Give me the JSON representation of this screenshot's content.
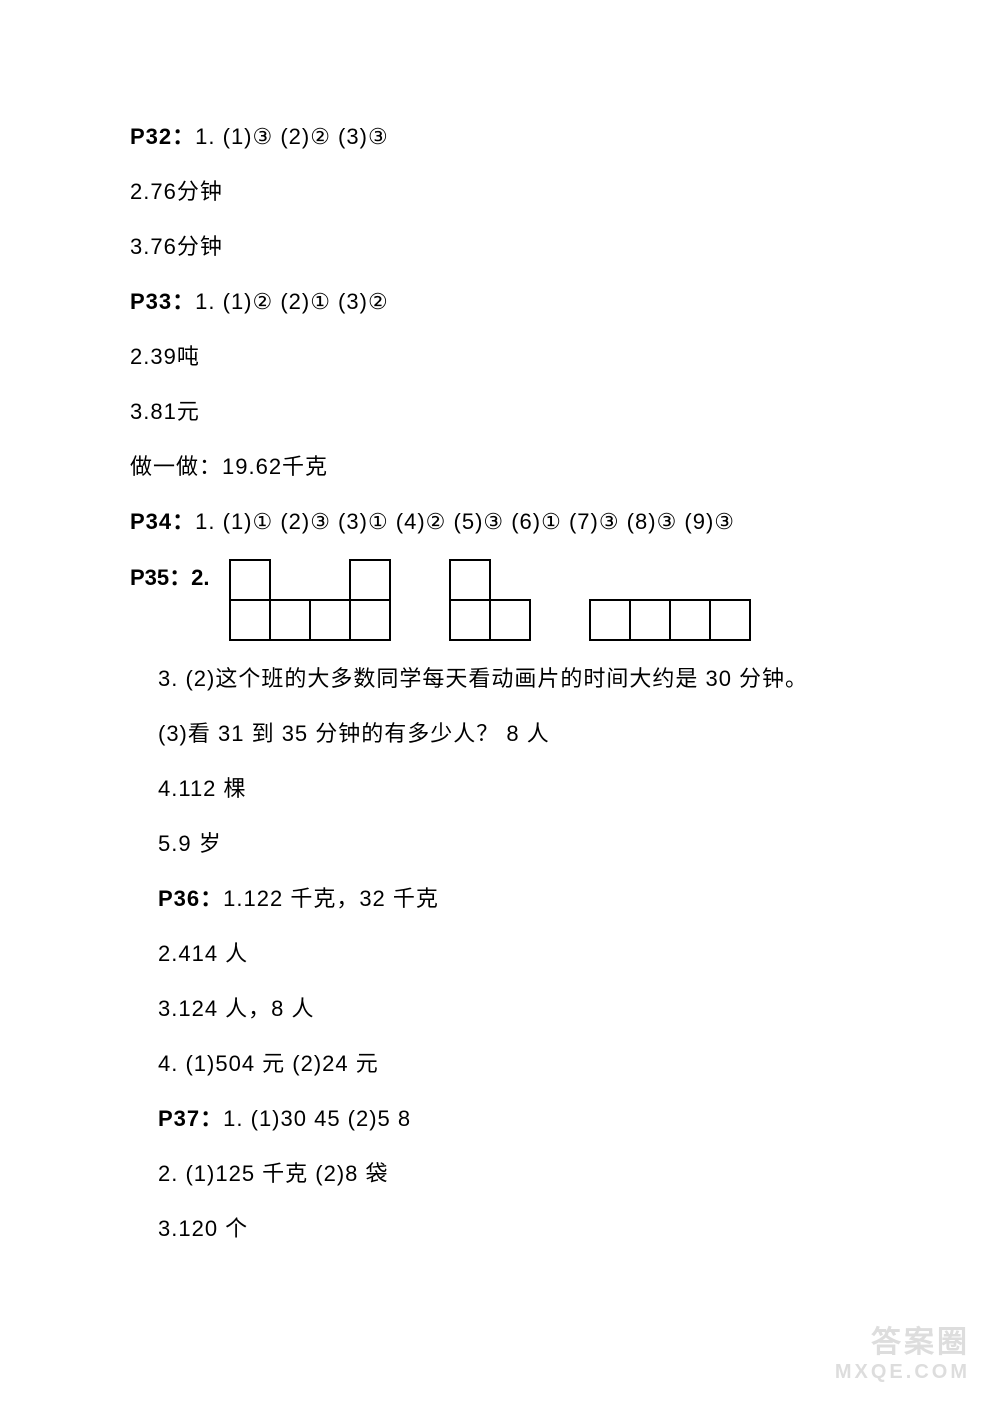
{
  "lines": {
    "l1": {
      "label": "P32：",
      "rest": "1.  (1)③ (2)② (3)③"
    },
    "l2": "2.76分钟",
    "l3": "3.76分钟",
    "l4": {
      "label": "P33：",
      "rest": "1.  (1)②    (2)①    (3)②"
    },
    "l5": "2.39吨",
    "l6": "3.81元",
    "l7": "做一做：19.62千克",
    "l8": {
      "label": "P34：",
      "rest": "1.  (1)① (2)③ (3)① (4)② (5)③ (6)① (7)③ (8)③ (9)③"
    },
    "l9_label": "P35：2.",
    "l10": "3.  (2)这个班的大多数同学每天看动画片的时间大约是 30 分钟。",
    "l11": "(3)看 31 到 35 分钟的有多少人？    8 人",
    "l12": "4.112 棵",
    "l13": "5.9 岁",
    "l14": {
      "label": "P36：",
      "rest": "1.122 千克，32 千克"
    },
    "l15": "2.414 人",
    "l16": "3.124 人，8 人",
    "l17": "4.  (1)504 元 (2)24 元",
    "l18": {
      "label": "P37：",
      "rest": "1.  (1)30   45   (2)5   8"
    },
    "l19": "2.  (1)125 千克   (2)8 袋",
    "l20": "3.120 个"
  },
  "diagrams": {
    "cell_size": 40,
    "shape1": {
      "width_cells": 4,
      "height_cells": 2,
      "cells": [
        {
          "r": 0,
          "c": 0
        },
        {
          "r": 0,
          "c": 3
        },
        {
          "r": 1,
          "c": 0
        },
        {
          "r": 1,
          "c": 1
        },
        {
          "r": 1,
          "c": 2
        },
        {
          "r": 1,
          "c": 3
        }
      ]
    },
    "shape2": {
      "width_cells": 2,
      "height_cells": 2,
      "cells": [
        {
          "r": 0,
          "c": 0
        },
        {
          "r": 1,
          "c": 0
        },
        {
          "r": 1,
          "c": 1
        }
      ]
    },
    "shape3": {
      "width_cells": 4,
      "height_cells": 1,
      "cells": [
        {
          "r": 0,
          "c": 0
        },
        {
          "r": 0,
          "c": 1
        },
        {
          "r": 0,
          "c": 2
        },
        {
          "r": 0,
          "c": 3
        }
      ]
    }
  },
  "watermark": {
    "top": "答案圈",
    "bottom": "MXQE.COM"
  },
  "colors": {
    "text": "#000000",
    "background": "#ffffff",
    "border": "#000000",
    "watermark": "#888888"
  }
}
